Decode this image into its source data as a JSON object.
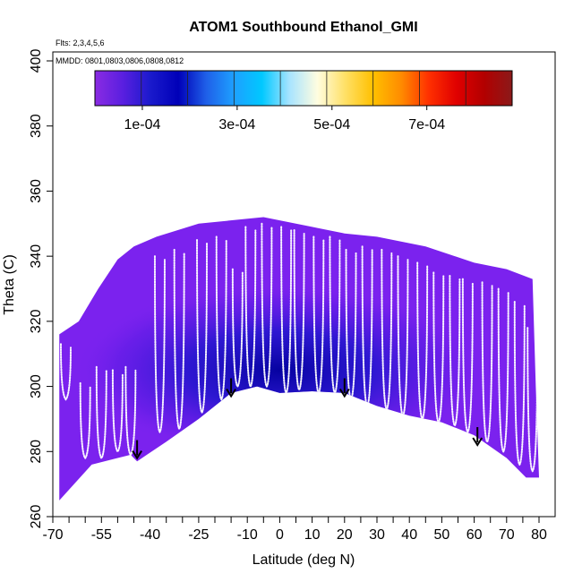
{
  "chart_data": {
    "type": "heatmap",
    "title": "ATOM1 Southbound Ethanol_GMI",
    "subtitle_flights": "Flts: 2,3,4,5,6",
    "subtitle_dates": "MMDD: 0801,0803,0806,0808,0812",
    "xlabel": "Latitude (deg N)",
    "ylabel": "Theta (C)",
    "xlim": [
      -70,
      85
    ],
    "ylim": [
      260,
      405
    ],
    "x_ticks": [
      -70,
      -55,
      -40,
      -25,
      -10,
      0,
      10,
      20,
      30,
      40,
      50,
      60,
      70,
      80
    ],
    "x_minor_ticks": [
      -65,
      -60,
      -50,
      -45,
      -35,
      -30,
      -20,
      -15,
      -5,
      5,
      15,
      25,
      35,
      45,
      55,
      65,
      75
    ],
    "y_ticks": [
      260,
      280,
      300,
      320,
      340,
      360,
      380,
      400
    ],
    "colorbar": {
      "range": [
        0,
        0.00088
      ],
      "tick_labels": [
        "1e-04",
        "3e-04",
        "5e-04",
        "7e-04"
      ],
      "tick_values": [
        0.0001,
        0.0003,
        0.0005,
        0.0007
      ],
      "colors": [
        "#8a2be2",
        "#5a1fe0",
        "#1a1acc",
        "#0000b8",
        "#1f5fe8",
        "#1ea0ff",
        "#00c8ff",
        "#a8e4ff",
        "#fffde0",
        "#ffe066",
        "#ffc000",
        "#ff8c00",
        "#ff3000",
        "#e00000",
        "#b20000",
        "#8b1a1a"
      ]
    },
    "upper_boundary": [
      {
        "lat": -68,
        "theta": 316
      },
      {
        "lat": -62,
        "theta": 320
      },
      {
        "lat": -56,
        "theta": 330
      },
      {
        "lat": -50,
        "theta": 339
      },
      {
        "lat": -45,
        "theta": 343
      },
      {
        "lat": -38,
        "theta": 346
      },
      {
        "lat": -25,
        "theta": 350
      },
      {
        "lat": -5,
        "theta": 352
      },
      {
        "lat": 10,
        "theta": 349
      },
      {
        "lat": 20,
        "theta": 347
      },
      {
        "lat": 30,
        "theta": 346
      },
      {
        "lat": 45,
        "theta": 343
      },
      {
        "lat": 60,
        "theta": 338
      },
      {
        "lat": 70,
        "theta": 336
      },
      {
        "lat": 78,
        "theta": 333
      },
      {
        "lat": 79,
        "theta": 300
      }
    ],
    "lower_boundary": [
      {
        "lat": -68,
        "theta": 265
      },
      {
        "lat": -58,
        "theta": 276
      },
      {
        "lat": -46,
        "theta": 279
      },
      {
        "lat": -44,
        "theta": 277
      },
      {
        "lat": -35,
        "theta": 283
      },
      {
        "lat": -25,
        "theta": 290
      },
      {
        "lat": -15,
        "theta": 298
      },
      {
        "lat": -7,
        "theta": 300
      },
      {
        "lat": 0,
        "theta": 298
      },
      {
        "lat": 10,
        "theta": 298.5
      },
      {
        "lat": 20,
        "theta": 298
      },
      {
        "lat": 30,
        "theta": 294
      },
      {
        "lat": 40,
        "theta": 291
      },
      {
        "lat": 50,
        "theta": 289
      },
      {
        "lat": 60,
        "theta": 285
      },
      {
        "lat": 70,
        "theta": 278
      },
      {
        "lat": 76,
        "theta": 272
      },
      {
        "lat": 80,
        "theta": 272
      }
    ],
    "concentration_core": {
      "center_lat": 0,
      "center_theta": 305,
      "peak_value": 0.00012
    },
    "flight_profiles": [
      {
        "lat": -66,
        "theta_top": 313,
        "theta_bottom": 296
      },
      {
        "lat": -60,
        "theta_top": 301,
        "theta_bottom": 278
      },
      {
        "lat": -55,
        "theta_top": 306,
        "theta_bottom": 278
      },
      {
        "lat": -50,
        "theta_top": 305,
        "theta_bottom": 280
      },
      {
        "lat": -46,
        "theta_top": 306,
        "theta_bottom": 279
      },
      {
        "lat": -37,
        "theta_top": 340,
        "theta_bottom": 286
      },
      {
        "lat": -31,
        "theta_top": 342,
        "theta_bottom": 287
      },
      {
        "lat": -24,
        "theta_top": 345,
        "theta_bottom": 292
      },
      {
        "lat": -18,
        "theta_top": 346,
        "theta_bottom": 296
      },
      {
        "lat": -13,
        "theta_top": 336,
        "theta_bottom": 300
      },
      {
        "lat": -9,
        "theta_top": 349,
        "theta_bottom": 300
      },
      {
        "lat": -4,
        "theta_top": 350,
        "theta_bottom": 300
      },
      {
        "lat": 2,
        "theta_top": 349,
        "theta_bottom": 298
      },
      {
        "lat": 6,
        "theta_top": 348,
        "theta_bottom": 299
      },
      {
        "lat": 12,
        "theta_top": 346,
        "theta_bottom": 298
      },
      {
        "lat": 17,
        "theta_top": 346,
        "theta_bottom": 298
      },
      {
        "lat": 22,
        "theta_top": 342,
        "theta_bottom": 296
      },
      {
        "lat": 27,
        "theta_top": 343,
        "theta_bottom": 294
      },
      {
        "lat": 33,
        "theta_top": 342,
        "theta_bottom": 293
      },
      {
        "lat": 38,
        "theta_top": 340,
        "theta_bottom": 291
      },
      {
        "lat": 44,
        "theta_top": 338,
        "theta_bottom": 290
      },
      {
        "lat": 49,
        "theta_top": 335,
        "theta_bottom": 289
      },
      {
        "lat": 54,
        "theta_top": 334,
        "theta_bottom": 288
      },
      {
        "lat": 58,
        "theta_top": 333,
        "theta_bottom": 286
      },
      {
        "lat": 64,
        "theta_top": 332,
        "theta_bottom": 283
      },
      {
        "lat": 69,
        "theta_top": 330,
        "theta_bottom": 280
      },
      {
        "lat": 74,
        "theta_top": 326,
        "theta_bottom": 276
      },
      {
        "lat": 78,
        "theta_top": 318,
        "theta_bottom": 274
      }
    ],
    "arrows": [
      {
        "lat": -44,
        "theta": 278
      },
      {
        "lat": -15,
        "theta": 297
      },
      {
        "lat": 20,
        "theta": 297
      },
      {
        "lat": 61,
        "theta": 282
      }
    ]
  }
}
